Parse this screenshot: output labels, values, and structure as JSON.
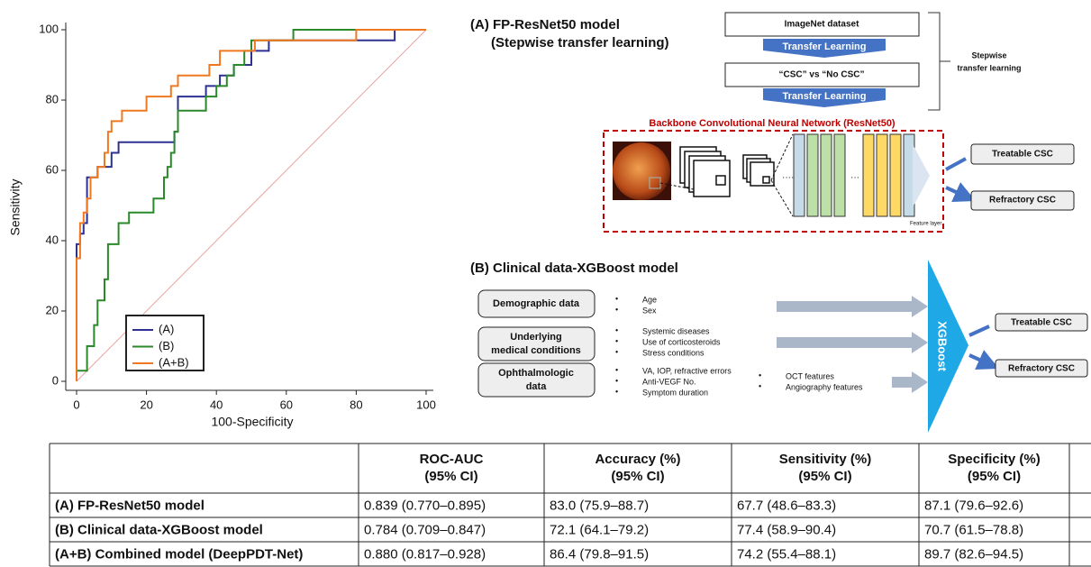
{
  "chart_data": {
    "type": "line",
    "xlabel": "100-Specificity",
    "ylabel": "Sensitivity",
    "xlim": [
      0,
      100
    ],
    "ylim": [
      0,
      100
    ],
    "xticks": [
      0,
      20,
      40,
      60,
      80,
      100
    ],
    "yticks": [
      0,
      20,
      40,
      60,
      80,
      100
    ],
    "grid": false,
    "legend": "lower left",
    "diagonal_color": "#e8a3a3",
    "series": [
      {
        "name": "(A)",
        "color": "#2e3192",
        "x": [
          0,
          0,
          1,
          1,
          2,
          2,
          3,
          3,
          3,
          6,
          6,
          10,
          10,
          12,
          12,
          28,
          28,
          29,
          29,
          29,
          37,
          37,
          41,
          41,
          45,
          45,
          50,
          50,
          55,
          55,
          91,
          91,
          100
        ],
        "values": [
          0,
          39,
          39,
          42,
          42,
          45,
          45,
          52,
          58,
          58,
          61,
          61,
          65,
          65,
          68,
          68,
          71,
          71,
          77,
          81,
          81,
          84,
          84,
          87,
          87,
          90,
          90,
          94,
          94,
          97,
          97,
          100,
          100
        ]
      },
      {
        "name": "(B)",
        "color": "#2a8a2a",
        "x": [
          0,
          0,
          3,
          3,
          5,
          5,
          6,
          6,
          8,
          8,
          9,
          9,
          12,
          12,
          15,
          15,
          22,
          22,
          25,
          25,
          26,
          26,
          27,
          27,
          28,
          28,
          29,
          29,
          37,
          37,
          40,
          40,
          43,
          43,
          45,
          45,
          48,
          48,
          50,
          50,
          62,
          62,
          100
        ],
        "values": [
          0,
          3,
          3,
          10,
          10,
          16,
          16,
          23,
          23,
          29,
          29,
          39,
          39,
          45,
          45,
          48,
          48,
          52,
          52,
          58,
          58,
          61,
          61,
          65,
          65,
          71,
          71,
          77,
          77,
          81,
          81,
          84,
          84,
          87,
          87,
          90,
          90,
          94,
          94,
          97,
          97,
          100,
          100
        ]
      },
      {
        "name": "(A+B)",
        "color": "#f07820",
        "x": [
          0,
          0,
          1,
          1,
          2,
          2,
          3,
          3,
          4,
          4,
          4,
          6,
          6,
          8,
          8,
          9,
          9,
          10,
          10,
          13,
          13,
          20,
          20,
          27,
          27,
          29,
          29,
          38,
          38,
          41,
          41,
          51,
          51,
          80,
          80,
          100
        ],
        "values": [
          0,
          35,
          35,
          45,
          45,
          48,
          48,
          52,
          52,
          55,
          58,
          58,
          61,
          61,
          65,
          65,
          71,
          71,
          74,
          74,
          77,
          77,
          81,
          81,
          84,
          84,
          87,
          87,
          90,
          90,
          94,
          94,
          97,
          97,
          100,
          100
        ]
      }
    ]
  },
  "diagram": {
    "panel_a": {
      "title": [
        "(A) FP-ResNet50 model",
        "(Stepwise transfer learning)"
      ],
      "steps": [
        "ImageNet dataset",
        "“CSC” vs “No CSC”"
      ],
      "transfer": [
        "Transfer Learning",
        "Transfer Learning"
      ],
      "bracket": [
        "Stepwise",
        "transfer learning"
      ],
      "backbone": "Backbone Convolutional Neural Network (ResNet50)",
      "feature_layer": "Feature layer",
      "outputs": [
        "Treatable CSC",
        "Refractory CSC"
      ]
    },
    "panel_b": {
      "title": "(B) Clinical data-XGBoost model",
      "groups": [
        {
          "label": [
            "Demographic data"
          ],
          "items": [
            "Age",
            "Sex"
          ]
        },
        {
          "label": [
            "Underlying",
            "medical conditions"
          ],
          "items": [
            "Systemic diseases",
            "Use of corticosteroids",
            "Stress conditions"
          ]
        },
        {
          "label": [
            "Ophthalmologic",
            "data"
          ],
          "items": [
            "VA, IOP, refractive errors",
            "Anti-VEGF No.",
            "Symptom duration"
          ]
        }
      ],
      "extra_items": [
        "OCT features",
        "Angiography features"
      ],
      "model": "XGBoost",
      "outputs": [
        "Treatable CSC",
        "Refractory CSC"
      ]
    }
  },
  "table": {
    "columns": [
      [
        "ROC-AUC",
        "(95% CI)"
      ],
      [
        "Accuracy (%)",
        "(95% CI)"
      ],
      [
        "Sensitivity (%)",
        "(95% CI)"
      ],
      [
        "Specificity (%)",
        "(95% CI)"
      ]
    ],
    "rows": [
      {
        "label": "(A) FP-ResNet50 model",
        "cells": [
          "0.839 (0.770–0.895)",
          "83.0 (75.9–88.7)",
          "67.7 (48.6–83.3)",
          "87.1 (79.6–92.6)"
        ]
      },
      {
        "label": "(B) Clinical data-XGBoost model",
        "cells": [
          "0.784 (0.709–0.847)",
          "72.1 (64.1–79.2)",
          "77.4 (58.9–90.4)",
          "70.7 (61.5–78.8)"
        ]
      },
      {
        "label": "(A+B) Combined model (DeepPDT-Net)",
        "cells": [
          "0.880 (0.817–0.928)",
          "86.4 (79.8–91.5)",
          "74.2 (55.4–88.1)",
          "89.7 (82.6–94.5)"
        ]
      }
    ]
  }
}
